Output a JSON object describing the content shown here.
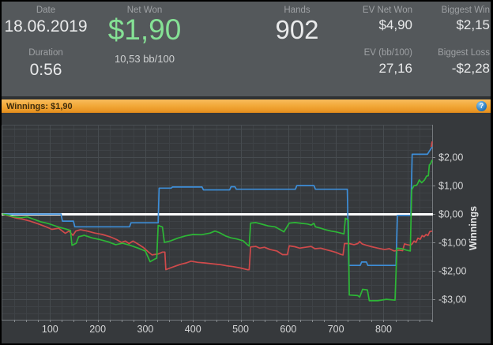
{
  "header": {
    "date": {
      "label": "Date",
      "value": "18.06.2019"
    },
    "duration": {
      "label": "Duration",
      "value": "0:56"
    },
    "net_won": {
      "label": "Net Won",
      "value": "$1,90",
      "sub": "10,53 bb/100",
      "color": "#85e195"
    },
    "hands": {
      "label": "Hands",
      "value": "902"
    },
    "ev_net_won": {
      "label": "EV Net Won",
      "value": "$4,90"
    },
    "ev_bb100": {
      "label": "EV (bb/100)",
      "value": "27,16"
    },
    "biggest_win": {
      "label": "Biggest Win",
      "value": "$2,15"
    },
    "biggest_loss": {
      "label": "Biggest Loss",
      "value": "-$2,28"
    }
  },
  "winnings_bar": {
    "label": "Winnings: $1,90",
    "help_glyph": "?",
    "color": "#f2a93a"
  },
  "chart_data": {
    "type": "line",
    "title": "",
    "xlabel": "",
    "ylabel": "Winnings",
    "xlim": [
      0,
      902
    ],
    "ylim": [
      -3.72,
      3.14
    ],
    "x_minor_step": 25,
    "y_minor_step": 0.25,
    "x_ticks": [
      {
        "value": 100,
        "label": "100"
      },
      {
        "value": 200,
        "label": "200"
      },
      {
        "value": 300,
        "label": "300"
      },
      {
        "value": 400,
        "label": "400"
      },
      {
        "value": 500,
        "label": "500"
      },
      {
        "value": 600,
        "label": "600"
      },
      {
        "value": 700,
        "label": "700"
      },
      {
        "value": 800,
        "label": "800"
      }
    ],
    "y_ticks": [
      {
        "value": 2,
        "label": "$2,00"
      },
      {
        "value": 1,
        "label": "$1,00"
      },
      {
        "value": 0,
        "label": "$0,00"
      },
      {
        "value": -1,
        "label": "-$1,00"
      },
      {
        "value": -2,
        "label": "-$2,00"
      },
      {
        "value": -3,
        "label": "-$3,00"
      }
    ],
    "grid": {
      "minor": "#3e4246",
      "major": "#474c50",
      "axis": "#75797d",
      "tick": "#85898c",
      "tick_text": "#d5d6d7"
    },
    "zero_line": {
      "value": 0,
      "color": "#ffffff"
    },
    "legend": "none",
    "series": [
      {
        "id": "blue-line",
        "color": "#3d8ed8",
        "points": [
          [
            0,
            0
          ],
          [
            123,
            0
          ],
          [
            126,
            -0.25
          ],
          [
            149,
            -0.25
          ],
          [
            152,
            -0.45
          ],
          [
            267,
            -0.45
          ],
          [
            270,
            -0.31
          ],
          [
            327,
            -0.31
          ],
          [
            329,
            0.91
          ],
          [
            354,
            0.91
          ],
          [
            357,
            0.95
          ],
          [
            419,
            0.95
          ],
          [
            422,
            0.85
          ],
          [
            477,
            0.85
          ],
          [
            480,
            0.96
          ],
          [
            488,
            0.96
          ],
          [
            491,
            0.87
          ],
          [
            615,
            0.87
          ],
          [
            618,
            1.0
          ],
          [
            654,
            1.0
          ],
          [
            657,
            0.87
          ],
          [
            724,
            0.87
          ],
          [
            727,
            -1.81
          ],
          [
            751,
            -1.81
          ],
          [
            754,
            -1.69
          ],
          [
            764,
            -1.69
          ],
          [
            767,
            -1.81
          ],
          [
            826,
            -1.81
          ],
          [
            829,
            -0.05
          ],
          [
            857,
            -0.05
          ],
          [
            860,
            2.1
          ],
          [
            892,
            2.1
          ],
          [
            895,
            2.18
          ],
          [
            902,
            2.36
          ]
        ]
      },
      {
        "id": "red-line",
        "color": "#d04a4b",
        "points": [
          [
            0,
            0
          ],
          [
            14,
            -0.07
          ],
          [
            28,
            -0.14
          ],
          [
            42,
            -0.18
          ],
          [
            58,
            -0.25
          ],
          [
            74,
            -0.34
          ],
          [
            90,
            -0.44
          ],
          [
            104,
            -0.54
          ],
          [
            118,
            -0.5
          ],
          [
            132,
            -0.68
          ],
          [
            140,
            -0.6
          ],
          [
            148,
            -0.75
          ],
          [
            154,
            -0.6
          ],
          [
            164,
            -0.55
          ],
          [
            178,
            -0.6
          ],
          [
            194,
            -0.67
          ],
          [
            210,
            -0.72
          ],
          [
            226,
            -0.8
          ],
          [
            240,
            -0.9
          ],
          [
            250,
            -1.0
          ],
          [
            258,
            -0.95
          ],
          [
            266,
            -1.04
          ],
          [
            274,
            -0.95
          ],
          [
            284,
            -1.05
          ],
          [
            296,
            -1.18
          ],
          [
            306,
            -1.33
          ],
          [
            314,
            -1.44
          ],
          [
            328,
            -1.4
          ],
          [
            336,
            -1.34
          ],
          [
            341,
            -1.34
          ],
          [
            343,
            -1.96
          ],
          [
            352,
            -1.9
          ],
          [
            362,
            -1.84
          ],
          [
            374,
            -1.77
          ],
          [
            386,
            -1.72
          ],
          [
            396,
            -1.66
          ],
          [
            410,
            -1.7
          ],
          [
            424,
            -1.72
          ],
          [
            440,
            -1.75
          ],
          [
            456,
            -1.78
          ],
          [
            470,
            -1.82
          ],
          [
            484,
            -1.85
          ],
          [
            500,
            -1.9
          ],
          [
            514,
            -1.96
          ],
          [
            518,
            -1.96
          ],
          [
            521,
            -1.16
          ],
          [
            532,
            -1.14
          ],
          [
            540,
            -1.2
          ],
          [
            550,
            -1.17
          ],
          [
            562,
            -1.25
          ],
          [
            576,
            -1.3
          ],
          [
            588,
            -1.43
          ],
          [
            598,
            -1.43
          ],
          [
            602,
            -1.12
          ],
          [
            614,
            -1.15
          ],
          [
            624,
            -1.2
          ],
          [
            636,
            -1.17
          ],
          [
            648,
            -1.14
          ],
          [
            656,
            -1.22
          ],
          [
            668,
            -1.2
          ],
          [
            678,
            -1.25
          ],
          [
            690,
            -1.3
          ],
          [
            700,
            -1.35
          ],
          [
            710,
            -1.42
          ],
          [
            715,
            -1.44
          ],
          [
            718,
            -1.04
          ],
          [
            728,
            -1.04
          ],
          [
            738,
            -1.08
          ],
          [
            746,
            -1.04
          ],
          [
            750,
            -0.97
          ],
          [
            755,
            -1.05
          ],
          [
            764,
            -1.1
          ],
          [
            775,
            -1.15
          ],
          [
            788,
            -1.2
          ],
          [
            802,
            -1.25
          ],
          [
            812,
            -1.22
          ],
          [
            822,
            -1.3
          ],
          [
            832,
            -1.27
          ],
          [
            840,
            -1.29
          ],
          [
            844,
            -1.05
          ],
          [
            850,
            -1.08
          ],
          [
            856,
            -1.1
          ],
          [
            860,
            -1.05
          ],
          [
            864,
            -0.95
          ],
          [
            868,
            -1.0
          ],
          [
            872,
            -0.85
          ],
          [
            877,
            -0.89
          ],
          [
            881,
            -0.76
          ],
          [
            885,
            -0.8
          ],
          [
            889,
            -0.72
          ],
          [
            893,
            -0.76
          ],
          [
            897,
            -0.62
          ],
          [
            902,
            -0.6
          ]
        ]
      },
      {
        "id": "green-line",
        "color": "#2db736",
        "points": [
          [
            0,
            0
          ],
          [
            12,
            -0.04
          ],
          [
            25,
            -0.1
          ],
          [
            40,
            -0.13
          ],
          [
            52,
            -0.1
          ],
          [
            65,
            -0.18
          ],
          [
            80,
            -0.27
          ],
          [
            95,
            -0.33
          ],
          [
            108,
            -0.4
          ],
          [
            120,
            -0.47
          ],
          [
            132,
            -0.52
          ],
          [
            143,
            -0.58
          ],
          [
            146,
            -1.1
          ],
          [
            155,
            -1.03
          ],
          [
            160,
            -0.8
          ],
          [
            172,
            -0.75
          ],
          [
            188,
            -0.84
          ],
          [
            205,
            -0.9
          ],
          [
            222,
            -0.98
          ],
          [
            238,
            -1.08
          ],
          [
            252,
            -1.03
          ],
          [
            268,
            -1.1
          ],
          [
            285,
            -1.2
          ],
          [
            300,
            -1.3
          ],
          [
            310,
            -1.68
          ],
          [
            316,
            -1.62
          ],
          [
            324,
            -1.55
          ],
          [
            327,
            -0.4
          ],
          [
            336,
            -0.46
          ],
          [
            340,
            -1.0
          ],
          [
            352,
            -0.95
          ],
          [
            368,
            -0.85
          ],
          [
            384,
            -0.77
          ],
          [
            400,
            -0.72
          ],
          [
            418,
            -0.73
          ],
          [
            436,
            -0.67
          ],
          [
            446,
            -0.6
          ],
          [
            455,
            -0.65
          ],
          [
            468,
            -0.77
          ],
          [
            480,
            -0.84
          ],
          [
            492,
            -0.88
          ],
          [
            505,
            -0.94
          ],
          [
            514,
            -1.08
          ],
          [
            518,
            -1.13
          ],
          [
            521,
            -0.32
          ],
          [
            532,
            -0.3
          ],
          [
            545,
            -0.36
          ],
          [
            558,
            -0.42
          ],
          [
            572,
            -0.45
          ],
          [
            586,
            -0.58
          ],
          [
            591,
            -0.63
          ],
          [
            602,
            -0.32
          ],
          [
            614,
            -0.3
          ],
          [
            628,
            -0.33
          ],
          [
            640,
            -0.35
          ],
          [
            648,
            -0.39
          ],
          [
            654,
            -0.33
          ],
          [
            657,
            -0.45
          ],
          [
            668,
            -0.5
          ],
          [
            678,
            -0.55
          ],
          [
            690,
            -0.6
          ],
          [
            700,
            -0.63
          ],
          [
            710,
            -0.67
          ],
          [
            717,
            -0.7
          ],
          [
            720,
            -0.15
          ],
          [
            726,
            -0.22
          ],
          [
            728,
            -2.85
          ],
          [
            746,
            -2.87
          ],
          [
            750,
            -2.92
          ],
          [
            756,
            -2.65
          ],
          [
            766,
            -2.67
          ],
          [
            770,
            -3.05
          ],
          [
            788,
            -3.05
          ],
          [
            806,
            -3.0
          ],
          [
            824,
            -3.03
          ],
          [
            828,
            -1.2
          ],
          [
            838,
            -1.22
          ],
          [
            848,
            -1.27
          ],
          [
            856,
            -1.3
          ],
          [
            859,
            0.85
          ],
          [
            864,
            1.0
          ],
          [
            868,
            1.0
          ],
          [
            871,
            1.05
          ],
          [
            875,
            1.2
          ],
          [
            880,
            1.1
          ],
          [
            886,
            1.2
          ],
          [
            890,
            1.33
          ],
          [
            894,
            1.35
          ],
          [
            896,
            1.72
          ],
          [
            899,
            1.78
          ],
          [
            902,
            1.9
          ]
        ]
      },
      {
        "id": "end-marker",
        "color": "#d04a4b",
        "points": [
          [
            900,
            2.36
          ],
          [
            902,
            2.55
          ]
        ]
      }
    ]
  }
}
